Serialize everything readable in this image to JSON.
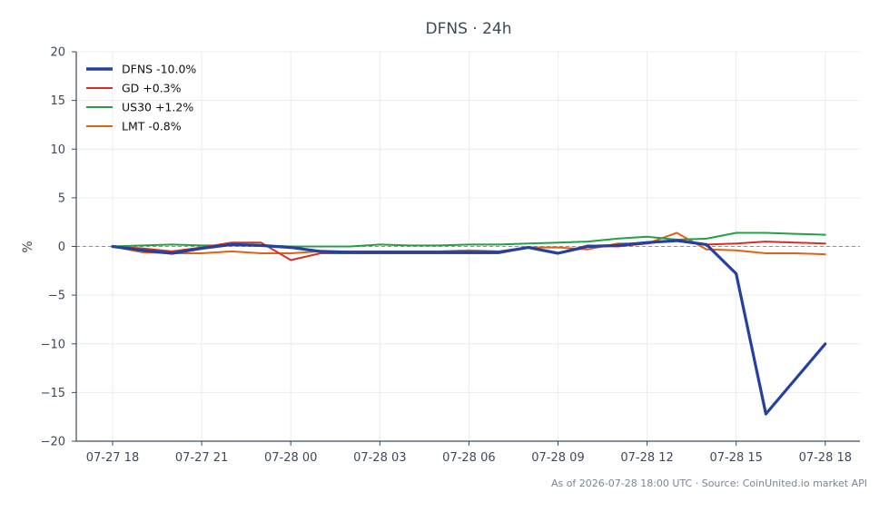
{
  "chart_data": {
    "type": "line",
    "title": "DFNS · 24h",
    "xlabel": "",
    "ylabel": "%",
    "ylim": [
      -20,
      20
    ],
    "yticks": [
      -20,
      -15,
      -10,
      -5,
      0,
      5,
      10,
      15,
      20
    ],
    "ytick_labels": [
      "−20",
      "−15",
      "−10",
      "−5",
      "0",
      "5",
      "10",
      "15",
      "20"
    ],
    "x_tick_labels": [
      "07-27 18",
      "07-27 21",
      "07-28 00",
      "07-28 03",
      "07-28 06",
      "07-28 09",
      "07-28 12",
      "07-28 15",
      "07-28 18"
    ],
    "grid": true,
    "zero_reference_line": true,
    "legend_position": "top-left",
    "x": [
      "07-27 18",
      "07-27 19",
      "07-27 20",
      "07-27 21",
      "07-27 22",
      "07-27 23",
      "07-28 00",
      "07-28 01",
      "07-28 02",
      "07-28 03",
      "07-28 04",
      "07-28 05",
      "07-28 06",
      "07-28 07",
      "07-28 08",
      "07-28 09",
      "07-28 10",
      "07-28 11",
      "07-28 12",
      "07-28 13",
      "07-28 14",
      "07-28 15",
      "07-28 16",
      "07-28 17",
      "07-28 18"
    ],
    "series": [
      {
        "name": "DFNS -10.0%",
        "color": "#2440a0",
        "emphasis": true,
        "values": [
          0,
          -0.4,
          -0.7,
          -0.2,
          0.2,
          0.1,
          -0.1,
          -0.5,
          -0.6,
          -0.6,
          -0.6,
          -0.6,
          -0.6,
          -0.6,
          -0.1,
          -0.7,
          0.0,
          0.1,
          0.4,
          0.6,
          0.2,
          -2.8,
          -17.2,
          -13.6,
          -10.0
        ]
      },
      {
        "name": "GD +0.3%",
        "color": "#d63026",
        "values": [
          0,
          -0.2,
          -0.5,
          -0.1,
          0.4,
          0.4,
          -1.4,
          -0.7,
          -0.7,
          -0.7,
          -0.7,
          -0.7,
          -0.7,
          -0.7,
          -0.1,
          -0.7,
          0.1,
          0.0,
          0.3,
          0.7,
          0.2,
          0.3,
          0.5,
          0.4,
          0.3
        ]
      },
      {
        "name": "US30 +1.2%",
        "color": "#22a045",
        "values": [
          0,
          0.1,
          0.2,
          0.1,
          0.1,
          0.1,
          0.0,
          0.0,
          0.0,
          0.2,
          0.1,
          0.1,
          0.2,
          0.2,
          0.3,
          0.4,
          0.5,
          0.8,
          1.0,
          0.7,
          0.8,
          1.4,
          1.4,
          1.3,
          1.2
        ]
      },
      {
        "name": "LMT -0.8%",
        "color": "#e06214",
        "values": [
          0,
          -0.6,
          -0.7,
          -0.7,
          -0.5,
          -0.7,
          -0.7,
          -0.5,
          -0.5,
          -0.5,
          -0.5,
          -0.5,
          -0.4,
          -0.5,
          -0.1,
          -0.1,
          -0.3,
          0.3,
          0.3,
          1.4,
          -0.3,
          -0.4,
          -0.7,
          -0.7,
          -0.8
        ]
      }
    ]
  },
  "footer": {
    "text": "As of 2026-07-28 18:00 UTC · Source: CoinUnited.io market API"
  }
}
